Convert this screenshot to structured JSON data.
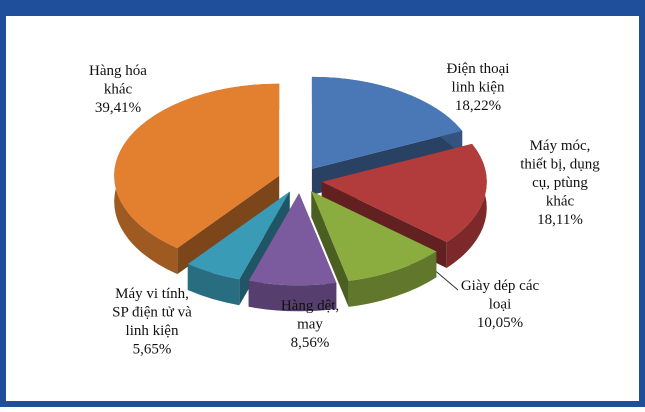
{
  "chart_data": {
    "type": "pie",
    "categories": [
      "Điện thoại\nlinh kiện",
      "Máy móc,\nthiết bị, dụng\ncụ, ptùng\nkhác",
      "Giày dép các\nloại",
      "Hàng dệt,\nmay",
      "Máy vi tính,\nSP điện tử và\nlinh kiện",
      "Hàng hóa\nkhác"
    ],
    "values": [
      18.22,
      18.11,
      10.05,
      8.56,
      5.65,
      39.41
    ],
    "value_labels": [
      "18,22%",
      "18,11%",
      "10,05%",
      "8,56%",
      "5,65%",
      "39,41%"
    ],
    "colors": [
      "#4a78b6",
      "#b23b3b",
      "#8bac3f",
      "#7b5a9d",
      "#3a9bb7",
      "#e2802f"
    ]
  }
}
